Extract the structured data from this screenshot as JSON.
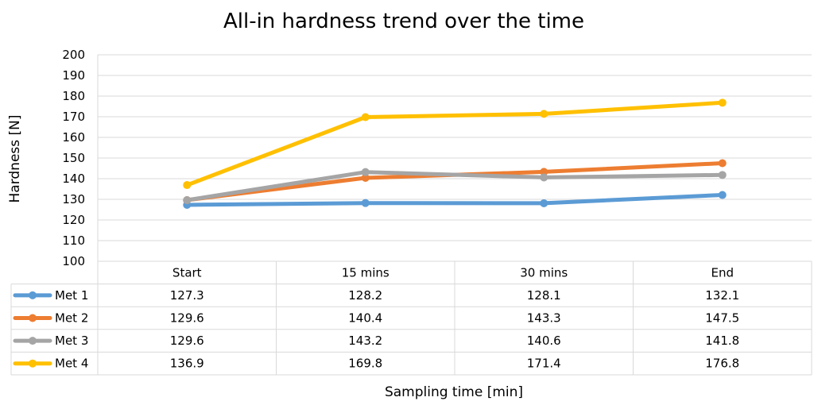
{
  "chart_data": {
    "type": "line",
    "title": "All-in hardness trend over the time",
    "xlabel": "Sampling time [min]",
    "ylabel": "Hardness [N]",
    "categories": [
      "Start",
      "15 mins",
      "30 mins",
      "End"
    ],
    "ylim": [
      100,
      200
    ],
    "y_ticks": [
      "100",
      "110",
      "120",
      "130",
      "140",
      "150",
      "160",
      "170",
      "180",
      "190",
      "200"
    ],
    "grid": true,
    "legend": "data-table",
    "series": [
      {
        "name": "Met 1",
        "color": "#5B9BD5",
        "values": [
          127.3,
          128.2,
          128.1,
          132.1
        ],
        "labels": [
          "127.3",
          "128.2",
          "128.1",
          "132.1"
        ]
      },
      {
        "name": "Met 2",
        "color": "#ED7D31",
        "values": [
          129.6,
          140.4,
          143.3,
          147.5
        ],
        "labels": [
          "129.6",
          "140.4",
          "143.3",
          "147.5"
        ]
      },
      {
        "name": "Met 3",
        "color": "#A5A5A5",
        "values": [
          129.6,
          143.2,
          140.6,
          141.8
        ],
        "labels": [
          "129.6",
          "143.2",
          "140.6",
          "141.8"
        ]
      },
      {
        "name": "Met 4",
        "color": "#FFC000",
        "values": [
          136.9,
          169.8,
          171.4,
          176.8
        ],
        "labels": [
          "136.9",
          "169.8",
          "171.4",
          "176.8"
        ]
      }
    ]
  }
}
